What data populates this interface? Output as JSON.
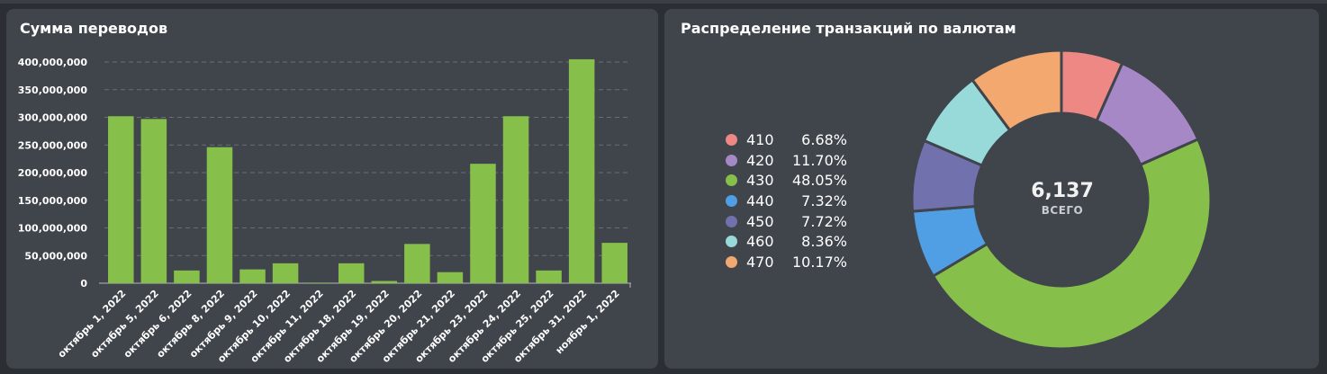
{
  "chart_data": [
    {
      "type": "bar",
      "title": "Сумма переводов",
      "categories": [
        "октябрь 1, 2022",
        "октябрь 5, 2022",
        "октябрь 6, 2022",
        "октябрь 8, 2022",
        "октябрь 9, 2022",
        "октябрь 10, 2022",
        "октябрь 11, 2022",
        "октябрь 18, 2022",
        "октябрь 19, 2022",
        "октябрь 20, 2022",
        "октябрь 21, 2022",
        "октябрь 23, 2022",
        "октябрь 24, 2022",
        "октябрь 25, 2022",
        "октябрь 31, 2022",
        "ноябрь 1, 2022"
      ],
      "values": [
        302000000,
        297000000,
        23000000,
        246000000,
        25000000,
        36000000,
        1000000,
        36000000,
        4000000,
        71000000,
        20000000,
        216000000,
        302000000,
        23000000,
        405000000,
        73000000
      ],
      "y_ticks": [
        "0",
        "50,000,000",
        "100,000,000",
        "150,000,000",
        "200,000,000",
        "250,000,000",
        "300,000,000",
        "350,000,000",
        "400,000,000"
      ],
      "ylim": [
        0,
        400000000
      ],
      "grid": true,
      "bar_color": "#86bf4a"
    },
    {
      "type": "pie",
      "title": "Распределение транзакций по валютам",
      "total": "6,137",
      "total_label": "ВСЕГО",
      "legend_position": "left",
      "slices": [
        {
          "label": "410",
          "pct_text": "6.68%",
          "value": 6.68,
          "color": "#ee8885"
        },
        {
          "label": "420",
          "pct_text": "11.70%",
          "value": 11.7,
          "color": "#a688c7"
        },
        {
          "label": "430",
          "pct_text": "48.05%",
          "value": 48.05,
          "color": "#86bf4a"
        },
        {
          "label": "440",
          "pct_text": "7.32%",
          "value": 7.32,
          "color": "#509ee3"
        },
        {
          "label": "450",
          "pct_text": "7.72%",
          "value": 7.72,
          "color": "#7172ad"
        },
        {
          "label": "460",
          "pct_text": "8.36%",
          "value": 8.36,
          "color": "#98d9d9"
        },
        {
          "label": "470",
          "pct_text": "10.17%",
          "value": 10.17,
          "color": "#f2a86f"
        }
      ]
    }
  ]
}
